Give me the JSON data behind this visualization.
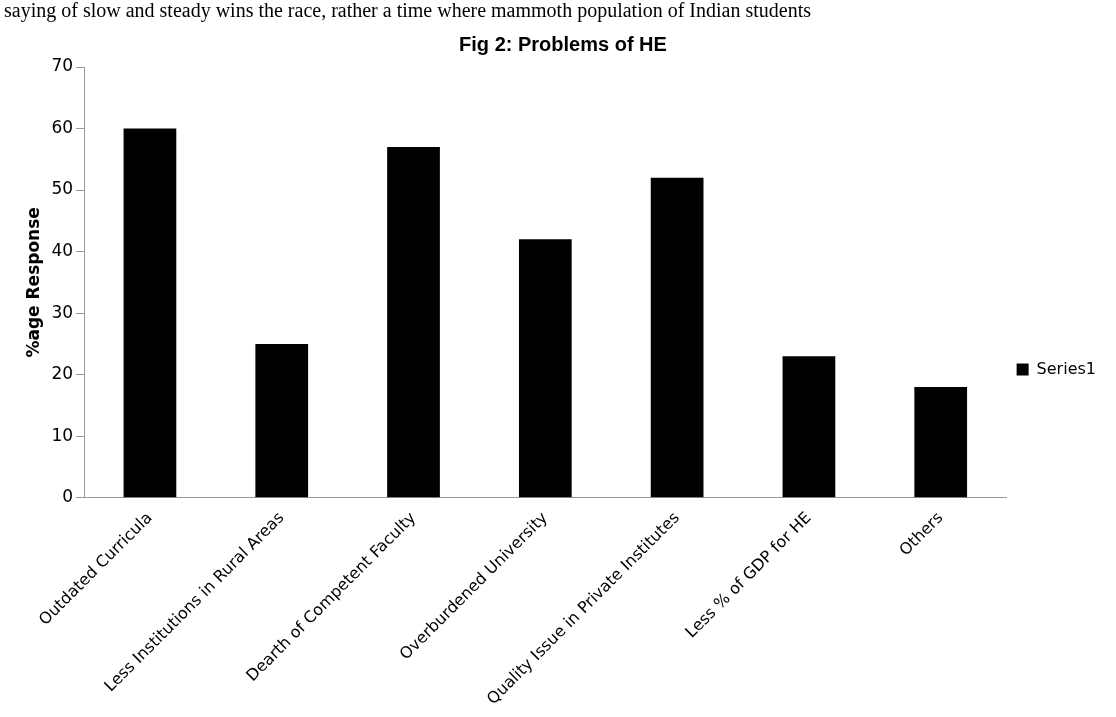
{
  "chart_data": {
    "type": "bar",
    "title": "Fig 2: Problems of HE",
    "ylabel": "%age Response",
    "categories": [
      "Outdated Curricula",
      "Less Institutions in Rural Areas",
      "Dearth of Competent Faculty",
      "Overburdened University",
      "Quality Issue in Private Institutes",
      "Less % of GDP for HE",
      "Others"
    ],
    "series": [
      {
        "name": "Series1",
        "color": "#000000",
        "values": [
          60,
          25,
          57,
          42,
          52,
          23,
          18
        ]
      }
    ],
    "ylim": [
      0,
      70
    ],
    "yticks": [
      0,
      10,
      20,
      30,
      40,
      50,
      60,
      70
    ],
    "grid": false,
    "legend": "right",
    "annotations": [
      "saying of slow and steady wins the race, rather a time where mammoth population of Indian students"
    ]
  }
}
